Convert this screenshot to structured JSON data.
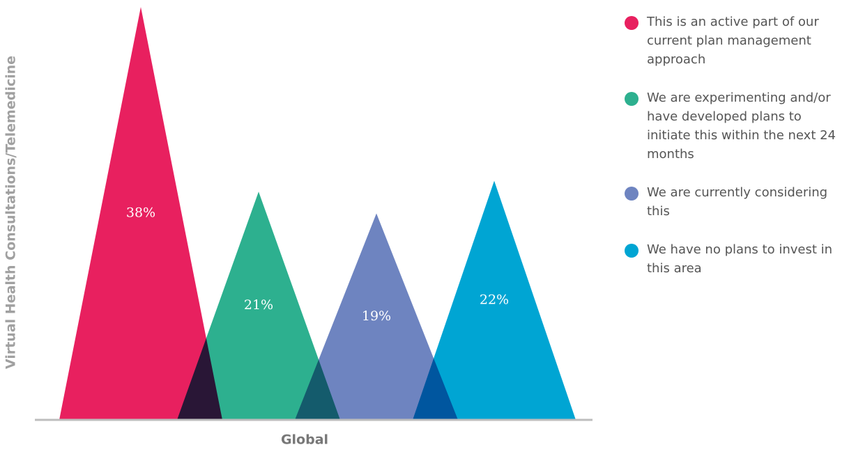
{
  "chart_data": {
    "type": "triangle",
    "y_label": "Virtual Health Consultations/Telemedicine",
    "categories": [
      "Global"
    ],
    "series": [
      {
        "name": "This is an active part of our current plan management approach",
        "color": "#e8205f",
        "values": [
          38
        ],
        "value_labels": [
          "38%"
        ]
      },
      {
        "name": "We are experimenting and/or have developed plans to initiate this within the next 24 months",
        "color": "#2db08f",
        "values": [
          21
        ],
        "value_labels": [
          "21%"
        ]
      },
      {
        "name": "We are currently considering this",
        "color": "#6e84c0",
        "values": [
          19
        ],
        "value_labels": [
          "19%"
        ]
      },
      {
        "name": "We have no plans to invest in this area",
        "color": "#00a5d3",
        "values": [
          22
        ],
        "value_labels": [
          "22%"
        ]
      }
    ]
  }
}
